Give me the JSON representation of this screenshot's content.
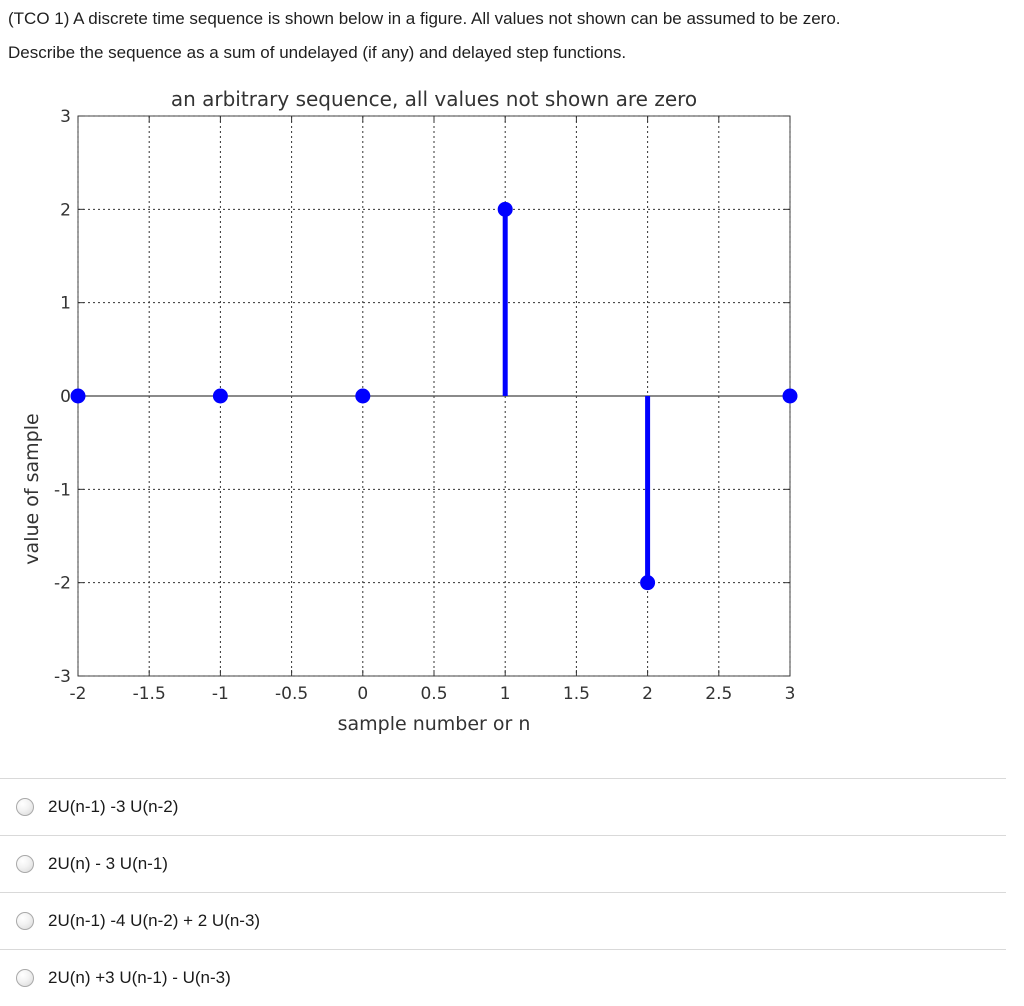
{
  "question": {
    "line1": "(TCO 1) A discrete time sequence is shown below in a figure. All values not shown can be assumed to be zero.",
    "line2": "Describe the sequence as a sum of undelayed (if any) and delayed step functions."
  },
  "chart_data": {
    "type": "stem",
    "title": "an arbitrary sequence, all values not shown are zero",
    "xlabel": "sample number or n",
    "ylabel": "value of sample",
    "xlim": [
      -2,
      3
    ],
    "ylim": [
      -3,
      3
    ],
    "x_ticks": [
      "-2",
      "-1.5",
      "-1",
      "-0.5",
      "0",
      "0.5",
      "1",
      "1.5",
      "2",
      "2.5",
      "3"
    ],
    "y_ticks": [
      "-3",
      "-2",
      "-1",
      "0",
      "1",
      "2",
      "3"
    ],
    "grid": true,
    "color": "#0000ff",
    "points": [
      {
        "x": -2,
        "y": 0
      },
      {
        "x": -1,
        "y": 0
      },
      {
        "x": 0,
        "y": 0
      },
      {
        "x": 1,
        "y": 2
      },
      {
        "x": 2,
        "y": -2
      },
      {
        "x": 3,
        "y": 0
      }
    ]
  },
  "options": [
    {
      "label": "2U(n-1) -3 U(n-2)"
    },
    {
      "label": "2U(n) - 3 U(n-1)"
    },
    {
      "label": "2U(n-1) -4 U(n-2) + 2 U(n-3)"
    },
    {
      "label": "2U(n) +3 U(n-1) - U(n-3)"
    }
  ]
}
